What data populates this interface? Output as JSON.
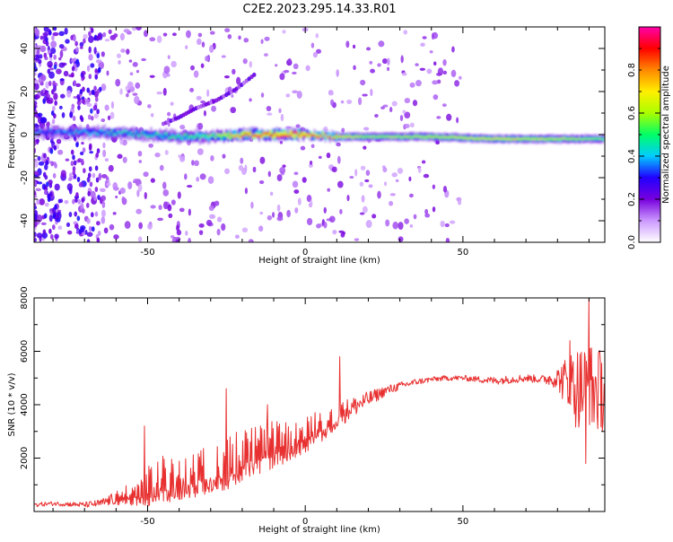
{
  "chart_data": [
    {
      "type": "heatmap",
      "title": "C2E2.2023.295.14.33.R01",
      "xlabel": "Height of straight line (km)",
      "ylabel": "Frequency (Hz)",
      "xlim": [
        -86,
        95
      ],
      "ylim": [
        -50,
        50
      ],
      "x_ticks": [
        -50,
        0,
        50
      ],
      "y_ticks": [
        -40,
        -20,
        0,
        20,
        40
      ],
      "colorbar": {
        "label": "Normalized spectral amplitude",
        "range": [
          0,
          1
        ],
        "ticks": [
          "0.0",
          "0.2",
          "0.4",
          "0.6",
          "0.8"
        ],
        "colormap": [
          "#ffffff",
          "#cc99ff",
          "#7700dd",
          "#2200ff",
          "#00ccff",
          "#00ff66",
          "#aaff00",
          "#ffee00",
          "#ff8800",
          "#ff0000",
          "#ff00aa"
        ]
      },
      "ridge": {
        "x": [
          -86,
          -70,
          -60,
          -50,
          -40,
          -30,
          -20,
          -10,
          0,
          10,
          20,
          40,
          60,
          80,
          95
        ],
        "frequency": [
          1,
          1,
          1,
          0,
          -1,
          -1,
          0,
          0,
          0,
          -1,
          -1,
          -1,
          -2,
          -2,
          -2
        ],
        "amplitude": [
          0.35,
          0.4,
          0.45,
          0.45,
          0.5,
          0.55,
          0.85,
          0.9,
          0.92,
          0.75,
          0.6,
          0.65,
          0.7,
          0.65,
          0.55
        ]
      },
      "harmonic": {
        "x": [
          -45,
          -40,
          -35,
          -28,
          -22,
          -16
        ],
        "frequency": [
          5,
          8,
          12,
          16,
          21,
          28
        ]
      }
    },
    {
      "type": "line",
      "title": "",
      "xlabel": "Height of straight line (km)",
      "ylabel": "SNR (10 * v/v)",
      "xlim": [
        -86,
        95
      ],
      "ylim": [
        0,
        8000
      ],
      "x_ticks": [
        -50,
        0,
        50
      ],
      "y_ticks": [
        2000,
        4000,
        6000,
        8000
      ],
      "color": "#e83030",
      "series": [
        {
          "x": [
            -86,
            -80,
            -70,
            -65,
            -60,
            -55,
            -50,
            -45,
            -40,
            -35,
            -30,
            -25,
            -20,
            -15,
            -10,
            -5,
            0,
            5,
            10,
            15,
            20,
            25,
            30,
            35,
            40,
            45,
            50,
            55,
            60,
            65,
            70,
            75,
            80,
            85,
            90,
            95
          ],
          "y": [
            250,
            300,
            250,
            300,
            500,
            700,
            1000,
            1200,
            1300,
            1400,
            1600,
            1800,
            2100,
            2300,
            2500,
            2700,
            2900,
            3200,
            3600,
            3900,
            4200,
            4500,
            4700,
            4850,
            4950,
            5000,
            5000,
            4950,
            4900,
            4950,
            5000,
            4950,
            5000,
            4700,
            4600,
            4500
          ],
          "noise": [
            80,
            80,
            100,
            150,
            250,
            500,
            800,
            900,
            900,
            900,
            900,
            1000,
            1100,
            1000,
            900,
            800,
            700,
            600,
            500,
            400,
            300,
            200,
            150,
            120,
            100,
            100,
            100,
            120,
            150,
            150,
            150,
            150,
            400,
            1500,
            1800,
            1500
          ],
          "peaks": [
            {
              "x": -51,
              "y": 3200
            },
            {
              "x": -25,
              "y": 4600
            },
            {
              "x": -12,
              "y": 4000
            },
            {
              "x": 11,
              "y": 5800
            },
            {
              "x": 84,
              "y": 6400
            },
            {
              "x": 90,
              "y": 8000
            },
            {
              "x": 89,
              "y": 1800
            }
          ]
        }
      ]
    }
  ]
}
